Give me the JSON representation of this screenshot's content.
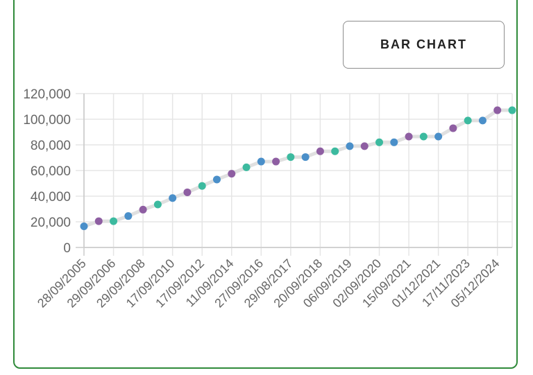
{
  "toggle_button": {
    "label": "BAR CHART"
  },
  "chart_data": {
    "type": "line",
    "title": "",
    "xlabel": "",
    "ylabel": "",
    "ylim": [
      0,
      120000
    ],
    "yticks": [
      "0",
      "20,000",
      "40,000",
      "60,000",
      "80,000",
      "100,000",
      "120,000"
    ],
    "grid": true,
    "legend": "none",
    "x_tick_labels": [
      "28/09/2005",
      "29/09/2006",
      "29/09/2008",
      "17/09/2010",
      "17/09/2012",
      "11/09/2014",
      "27/09/2016",
      "29/08/2017",
      "20/09/2018",
      "06/09/2019",
      "02/09/2020",
      "15/09/2021",
      "01/12/2021",
      "17/11/2023",
      "05/12/2024"
    ],
    "values": [
      16500,
      20500,
      20500,
      24500,
      29500,
      33500,
      38500,
      43000,
      48000,
      53000,
      57500,
      62500,
      67000,
      67000,
      70500,
      70500,
      75000,
      75000,
      79000,
      79000,
      82000,
      82000,
      86500,
      86500,
      86500,
      93000,
      99000,
      99000,
      107000,
      107000
    ],
    "point_colors": [
      "#4a8fc9",
      "#8e5ea2",
      "#3cba9f"
    ],
    "line_color": "#e0e0e0",
    "grid_color": "#e5e5e5"
  }
}
